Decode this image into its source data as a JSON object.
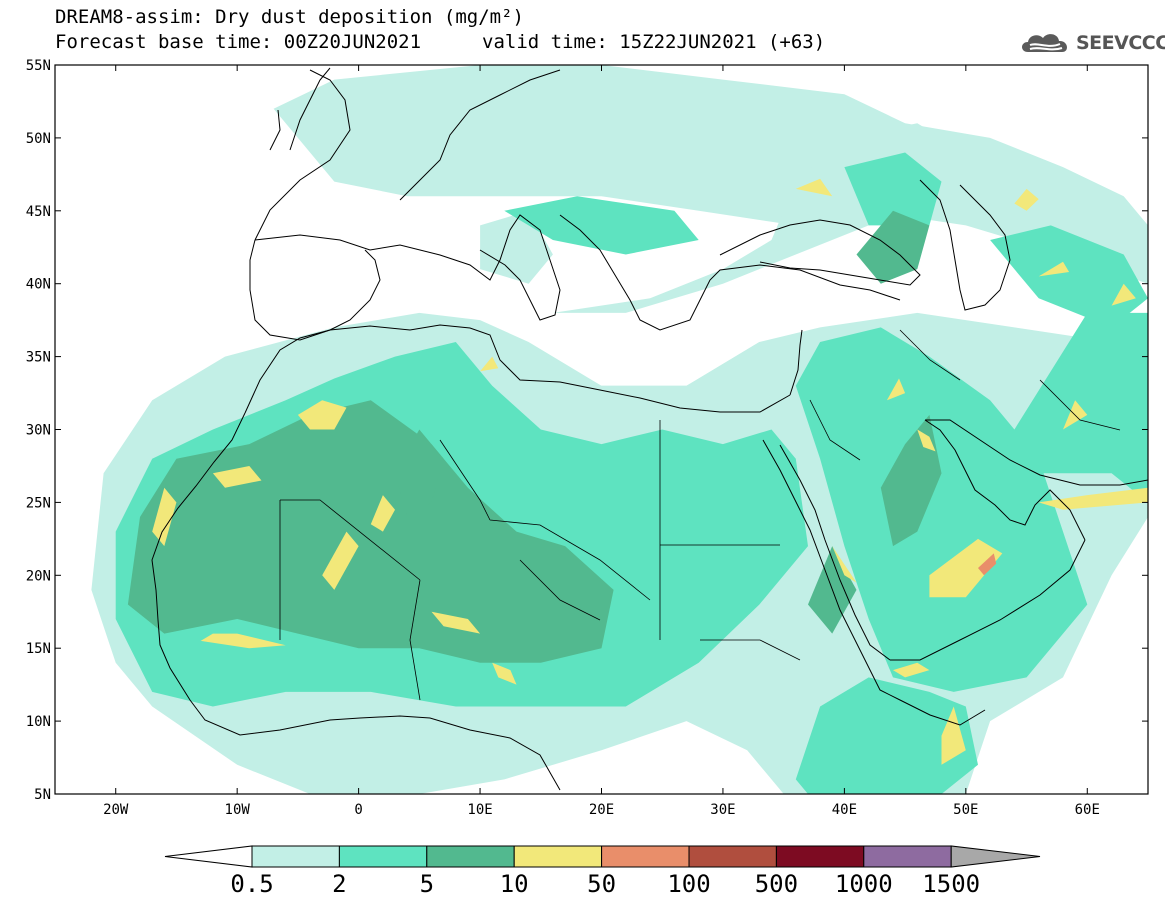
{
  "title": {
    "line1": "DREAM8-assim: Dry dust deposition (mg/m²)",
    "line2": "Forecast base time: 00Z20JUN2021",
    "valid": "valid time: 15Z22JUN2021 (+63)"
  },
  "logo": {
    "text": "SEEVCCC",
    "icon": "cloud-icon",
    "color": "#555555"
  },
  "map": {
    "lon_range": [
      -25,
      65
    ],
    "lat_range": [
      5,
      55
    ],
    "lat_ticks": [
      {
        "value": 55,
        "label": "55N"
      },
      {
        "value": 50,
        "label": "50N"
      },
      {
        "value": 45,
        "label": "45N"
      },
      {
        "value": 40,
        "label": "40N"
      },
      {
        "value": 35,
        "label": "35N"
      },
      {
        "value": 30,
        "label": "30N"
      },
      {
        "value": 25,
        "label": "25N"
      },
      {
        "value": 20,
        "label": "20N"
      },
      {
        "value": 15,
        "label": "15N"
      },
      {
        "value": 10,
        "label": "10N"
      },
      {
        "value": 5,
        "label": "5N"
      }
    ],
    "lon_ticks": [
      {
        "value": -20,
        "label": "20W"
      },
      {
        "value": -10,
        "label": "10W"
      },
      {
        "value": 0,
        "label": "0"
      },
      {
        "value": 10,
        "label": "10E"
      },
      {
        "value": 20,
        "label": "20E"
      },
      {
        "value": 30,
        "label": "30E"
      },
      {
        "value": 40,
        "label": "40E"
      },
      {
        "value": 50,
        "label": "50E"
      },
      {
        "value": 60,
        "label": "60E"
      }
    ]
  },
  "colorbar": {
    "levels": [
      "0.5",
      "2",
      "5",
      "10",
      "50",
      "100",
      "500",
      "1000",
      "1500"
    ],
    "colors": [
      "#c2efe6",
      "#5ee3c0",
      "#52b98f",
      "#f2e87a",
      "#e98e6a",
      "#b04e3e",
      "#7d0b22",
      "#8e6ba0"
    ],
    "under_color": "#ffffff",
    "over_color": "#a8a8a8"
  },
  "legend_colors": {
    "c1": "#c2efe6",
    "c2": "#5ee3c0",
    "c3": "#52b98f",
    "c4": "#f2e87a",
    "c5": "#e98e6a"
  },
  "field": {
    "light": [
      [
        [
          -21,
          27
        ],
        [
          -17,
          32
        ],
        [
          -11,
          35
        ],
        [
          -2,
          37
        ],
        [
          5,
          38
        ],
        [
          10,
          37.5
        ],
        [
          14,
          36
        ],
        [
          20,
          33
        ],
        [
          27,
          33
        ],
        [
          33,
          36
        ],
        [
          38,
          37
        ],
        [
          46,
          38
        ],
        [
          54,
          37
        ],
        [
          62,
          36
        ],
        [
          65,
          33
        ],
        [
          65,
          24
        ],
        [
          62,
          20
        ],
        [
          58,
          13
        ],
        [
          52,
          10
        ],
        [
          50,
          5
        ],
        [
          35,
          5
        ],
        [
          32,
          8
        ],
        [
          27,
          10
        ],
        [
          20,
          8
        ],
        [
          12,
          6
        ],
        [
          5,
          5
        ],
        [
          -4,
          5
        ],
        [
          -10,
          7
        ],
        [
          -17,
          11
        ],
        [
          -20,
          14
        ],
        [
          -22,
          19
        ]
      ],
      [
        [
          -7,
          52
        ],
        [
          -2,
          54
        ],
        [
          10,
          55
        ],
        [
          20,
          55
        ],
        [
          30,
          54
        ],
        [
          40,
          53
        ],
        [
          45,
          51
        ],
        [
          52,
          50
        ],
        [
          58,
          48
        ],
        [
          63,
          46
        ],
        [
          65,
          44
        ],
        [
          65,
          40
        ],
        [
          58,
          42
        ],
        [
          50,
          44
        ],
        [
          42,
          45
        ],
        [
          36,
          44
        ],
        [
          28,
          45
        ],
        [
          20,
          46
        ],
        [
          12,
          46
        ],
        [
          4,
          46
        ],
        [
          -2,
          47
        ]
      ],
      [
        [
          16,
          38
        ],
        [
          24,
          39
        ],
        [
          30,
          41
        ],
        [
          34,
          43
        ],
        [
          36,
          47
        ],
        [
          40,
          50
        ],
        [
          46,
          51
        ],
        [
          50,
          49
        ],
        [
          48,
          46
        ],
        [
          42,
          44
        ],
        [
          36,
          42
        ],
        [
          30,
          40
        ],
        [
          22,
          38
        ]
      ],
      [
        [
          10,
          44
        ],
        [
          14,
          45
        ],
        [
          16,
          42
        ],
        [
          14,
          40
        ],
        [
          10,
          41
        ]
      ],
      [
        [
          17,
          33
        ],
        [
          27,
          33
        ],
        [
          33,
          36
        ],
        [
          36,
          34
        ],
        [
          32,
          32
        ],
        [
          22,
          31
        ],
        [
          18,
          32
        ]
      ]
    ],
    "medium": [
      [
        [
          -20,
          17
        ],
        [
          -20,
          23
        ],
        [
          -17,
          28
        ],
        [
          -12,
          30
        ],
        [
          -6,
          32
        ],
        [
          -2,
          33.5
        ],
        [
          3,
          35
        ],
        [
          8,
          36
        ],
        [
          11,
          33
        ],
        [
          15,
          30
        ],
        [
          20,
          29
        ],
        [
          25,
          30
        ],
        [
          30,
          29
        ],
        [
          34,
          30
        ],
        [
          36,
          28
        ],
        [
          37,
          22
        ],
        [
          33,
          18
        ],
        [
          28,
          14
        ],
        [
          22,
          11
        ],
        [
          15,
          11
        ],
        [
          8,
          11
        ],
        [
          1,
          12
        ],
        [
          -6,
          12
        ],
        [
          -12,
          11
        ],
        [
          -17,
          12
        ]
      ],
      [
        [
          36,
          33
        ],
        [
          38,
          36
        ],
        [
          43,
          37
        ],
        [
          47,
          35
        ],
        [
          52,
          32
        ],
        [
          56,
          28
        ],
        [
          58,
          23
        ],
        [
          60,
          18
        ],
        [
          55,
          13
        ],
        [
          49,
          12
        ],
        [
          44,
          13
        ],
        [
          42,
          17
        ],
        [
          40,
          22
        ],
        [
          38,
          28
        ]
      ],
      [
        [
          36,
          6
        ],
        [
          38,
          11
        ],
        [
          42,
          13
        ],
        [
          47,
          12
        ],
        [
          50,
          11
        ],
        [
          51,
          7
        ],
        [
          48,
          5
        ],
        [
          37,
          5
        ]
      ],
      [
        [
          51,
          24
        ],
        [
          56,
          27
        ],
        [
          62,
          27
        ],
        [
          65,
          25
        ],
        [
          65,
          38
        ],
        [
          60,
          38
        ],
        [
          57,
          34
        ],
        [
          54,
          30
        ]
      ],
      [
        [
          40,
          48
        ],
        [
          45,
          49
        ],
        [
          48,
          47
        ],
        [
          47,
          44
        ],
        [
          42,
          44
        ]
      ],
      [
        [
          12,
          45
        ],
        [
          18,
          46
        ],
        [
          26,
          45
        ],
        [
          28,
          43
        ],
        [
          22,
          42
        ],
        [
          16,
          43
        ]
      ],
      [
        [
          52,
          43
        ],
        [
          57,
          44
        ],
        [
          63,
          42
        ],
        [
          65,
          39
        ],
        [
          62,
          37
        ],
        [
          56,
          39
        ]
      ]
    ],
    "dark": [
      [
        [
          -19,
          18
        ],
        [
          -18,
          24
        ],
        [
          -15,
          28
        ],
        [
          -9,
          29
        ],
        [
          -4,
          31
        ],
        [
          1,
          32
        ],
        [
          6,
          29
        ],
        [
          9,
          26
        ],
        [
          13,
          23
        ],
        [
          17,
          22
        ],
        [
          21,
          19
        ],
        [
          20,
          15
        ],
        [
          15,
          14
        ],
        [
          10,
          14
        ],
        [
          5,
          15
        ],
        [
          0,
          15
        ],
        [
          -5,
          16
        ],
        [
          -10,
          17
        ],
        [
          -16,
          16
        ]
      ],
      [
        [
          43,
          26
        ],
        [
          45,
          29
        ],
        [
          47,
          31
        ],
        [
          48,
          27
        ],
        [
          46,
          23
        ],
        [
          44,
          22
        ]
      ],
      [
        [
          41,
          42
        ],
        [
          44,
          45
        ],
        [
          47,
          44
        ],
        [
          46,
          41
        ],
        [
          43,
          40
        ]
      ],
      [
        [
          37,
          18
        ],
        [
          39,
          22
        ],
        [
          41,
          19
        ],
        [
          39,
          16
        ]
      ],
      [
        [
          3,
          27
        ],
        [
          5,
          30
        ],
        [
          7,
          28
        ],
        [
          6,
          25
        ],
        [
          4,
          24
        ]
      ]
    ],
    "yellow": [
      [
        [
          -5,
          31
        ],
        [
          -3,
          32
        ],
        [
          -1,
          31.5
        ],
        [
          -2,
          30
        ],
        [
          -4,
          30
        ]
      ],
      [
        [
          -12,
          27
        ],
        [
          -9,
          27.5
        ],
        [
          -8,
          26.5
        ],
        [
          -11,
          26
        ]
      ],
      [
        [
          -17,
          23
        ],
        [
          -16,
          26
        ],
        [
          -15,
          25
        ],
        [
          -16,
          22
        ]
      ],
      [
        [
          -3,
          20
        ],
        [
          -1,
          23
        ],
        [
          0,
          22
        ],
        [
          -2,
          19
        ]
      ],
      [
        [
          1,
          23.5
        ],
        [
          2,
          25.5
        ],
        [
          3,
          24.5
        ],
        [
          2,
          23
        ]
      ],
      [
        [
          -13,
          15.5
        ],
        [
          -9,
          15
        ],
        [
          -6,
          15.2
        ],
        [
          -10,
          16
        ],
        [
          -12,
          16
        ]
      ],
      [
        [
          6,
          17.5
        ],
        [
          9,
          17
        ],
        [
          10,
          16
        ],
        [
          7,
          16.5
        ]
      ],
      [
        [
          11,
          14
        ],
        [
          12.5,
          13.5
        ],
        [
          13,
          12.5
        ],
        [
          11.5,
          13
        ]
      ],
      [
        [
          37,
          26
        ],
        [
          39,
          22
        ],
        [
          41,
          19.5
        ],
        [
          40,
          20
        ],
        [
          38,
          24
        ]
      ],
      [
        [
          47,
          20
        ],
        [
          51,
          22.5
        ],
        [
          53,
          21.5
        ],
        [
          50,
          18.5
        ],
        [
          47,
          18.5
        ]
      ],
      [
        [
          44,
          13.5
        ],
        [
          46,
          14
        ],
        [
          47,
          13.5
        ],
        [
          45,
          13
        ]
      ],
      [
        [
          48,
          9
        ],
        [
          49,
          11
        ],
        [
          50,
          8
        ],
        [
          48,
          7
        ]
      ],
      [
        [
          54,
          45.5
        ],
        [
          55,
          46.5
        ],
        [
          56,
          45.8
        ],
        [
          55,
          45
        ]
      ],
      [
        [
          36,
          46.5
        ],
        [
          38,
          47.2
        ],
        [
          39,
          46
        ]
      ],
      [
        [
          62,
          38.5
        ],
        [
          63,
          40
        ],
        [
          64,
          39
        ]
      ],
      [
        [
          56,
          25
        ],
        [
          60,
          25.5
        ],
        [
          65,
          26
        ],
        [
          65,
          25
        ],
        [
          58,
          24.5
        ]
      ],
      [
        [
          58,
          30
        ],
        [
          59,
          32
        ],
        [
          60,
          31
        ]
      ],
      [
        [
          43.5,
          32
        ],
        [
          44.5,
          33.5
        ],
        [
          45,
          32.5
        ]
      ],
      [
        [
          46,
          30
        ],
        [
          47,
          29.5
        ],
        [
          47.5,
          28.5
        ],
        [
          46.5,
          28.8
        ]
      ],
      [
        [
          10,
          34
        ],
        [
          11,
          35
        ],
        [
          11.5,
          34.2
        ]
      ],
      [
        [
          56,
          40.5
        ],
        [
          58,
          41.5
        ],
        [
          58.5,
          40.8
        ]
      ]
    ],
    "orange": [
      [
        [
          51,
          20.5
        ],
        [
          52.3,
          21.5
        ],
        [
          52.5,
          20.8
        ],
        [
          51.5,
          20
        ]
      ]
    ]
  }
}
